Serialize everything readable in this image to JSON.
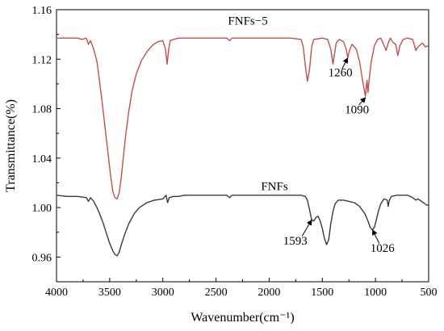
{
  "chart_data": {
    "type": "line",
    "xlabel": "Wavenumber(cm⁻¹)",
    "ylabel": "Transmittance(%)",
    "xlim": [
      4000,
      500
    ],
    "ylim": [
      0.94,
      1.16
    ],
    "x_reversed": true,
    "x_ticks": [
      4000,
      3500,
      3000,
      2500,
      2000,
      1500,
      1000,
      500
    ],
    "y_ticks": [
      0.96,
      1.0,
      1.04,
      1.08,
      1.12,
      1.16
    ],
    "y_tick_labels": [
      "0.96",
      "1.00",
      "1.04",
      "1.08",
      "1.12",
      "1.16"
    ],
    "grid": false,
    "series": [
      {
        "name": "FNFs−5",
        "color": "#c0504d",
        "points": [
          [
            4000,
            1.137
          ],
          [
            3900,
            1.137
          ],
          [
            3800,
            1.137
          ],
          [
            3760,
            1.136
          ],
          [
            3720,
            1.137
          ],
          [
            3700,
            1.132
          ],
          [
            3680,
            1.135
          ],
          [
            3650,
            1.128
          ],
          [
            3620,
            1.118
          ],
          [
            3600,
            1.105
          ],
          [
            3570,
            1.085
          ],
          [
            3540,
            1.062
          ],
          [
            3510,
            1.04
          ],
          [
            3490,
            1.025
          ],
          [
            3470,
            1.013
          ],
          [
            3450,
            1.008
          ],
          [
            3430,
            1.007
          ],
          [
            3410,
            1.012
          ],
          [
            3390,
            1.025
          ],
          [
            3370,
            1.042
          ],
          [
            3350,
            1.058
          ],
          [
            3320,
            1.078
          ],
          [
            3290,
            1.094
          ],
          [
            3250,
            1.108
          ],
          [
            3200,
            1.119
          ],
          [
            3150,
            1.126
          ],
          [
            3100,
            1.131
          ],
          [
            3050,
            1.134
          ],
          [
            3000,
            1.135
          ],
          [
            2975,
            1.128
          ],
          [
            2960,
            1.116
          ],
          [
            2945,
            1.128
          ],
          [
            2930,
            1.135
          ],
          [
            2900,
            1.136
          ],
          [
            2850,
            1.137
          ],
          [
            2800,
            1.137
          ],
          [
            2600,
            1.137
          ],
          [
            2400,
            1.137
          ],
          [
            2370,
            1.135
          ],
          [
            2350,
            1.137
          ],
          [
            2200,
            1.137
          ],
          [
            2000,
            1.137
          ],
          [
            1900,
            1.137
          ],
          [
            1800,
            1.137
          ],
          [
            1700,
            1.136
          ],
          [
            1680,
            1.13
          ],
          [
            1660,
            1.115
          ],
          [
            1640,
            1.102
          ],
          [
            1620,
            1.112
          ],
          [
            1600,
            1.13
          ],
          [
            1580,
            1.136
          ],
          [
            1500,
            1.137
          ],
          [
            1450,
            1.136
          ],
          [
            1420,
            1.128
          ],
          [
            1400,
            1.116
          ],
          [
            1385,
            1.124
          ],
          [
            1370,
            1.133
          ],
          [
            1340,
            1.136
          ],
          [
            1300,
            1.134
          ],
          [
            1275,
            1.128
          ],
          [
            1260,
            1.121
          ],
          [
            1245,
            1.127
          ],
          [
            1220,
            1.132
          ],
          [
            1180,
            1.128
          ],
          [
            1150,
            1.118
          ],
          [
            1120,
            1.102
          ],
          [
            1095,
            1.09
          ],
          [
            1080,
            1.103
          ],
          [
            1070,
            1.093
          ],
          [
            1060,
            1.103
          ],
          [
            1040,
            1.118
          ],
          [
            1010,
            1.131
          ],
          [
            980,
            1.136
          ],
          [
            950,
            1.137
          ],
          [
            920,
            1.131
          ],
          [
            900,
            1.127
          ],
          [
            880,
            1.133
          ],
          [
            860,
            1.137
          ],
          [
            840,
            1.134
          ],
          [
            810,
            1.132
          ],
          [
            790,
            1.123
          ],
          [
            770,
            1.131
          ],
          [
            740,
            1.136
          ],
          [
            700,
            1.137
          ],
          [
            650,
            1.136
          ],
          [
            620,
            1.127
          ],
          [
            600,
            1.13
          ],
          [
            560,
            1.133
          ],
          [
            530,
            1.13
          ],
          [
            500,
            1.131
          ]
        ]
      },
      {
        "name": "FNFs",
        "color": "#3a3a3a",
        "points": [
          [
            4000,
            1.01
          ],
          [
            3900,
            1.009
          ],
          [
            3800,
            1.009
          ],
          [
            3720,
            1.008
          ],
          [
            3700,
            1.005
          ],
          [
            3680,
            1.008
          ],
          [
            3650,
            1.005
          ],
          [
            3620,
            1.0
          ],
          [
            3590,
            0.994
          ],
          [
            3560,
            0.987
          ],
          [
            3530,
            0.979
          ],
          [
            3500,
            0.971
          ],
          [
            3470,
            0.965
          ],
          [
            3450,
            0.962
          ],
          [
            3430,
            0.961
          ],
          [
            3410,
            0.964
          ],
          [
            3390,
            0.97
          ],
          [
            3360,
            0.978
          ],
          [
            3320,
            0.987
          ],
          [
            3270,
            0.995
          ],
          [
            3220,
            1.0
          ],
          [
            3150,
            1.004
          ],
          [
            3080,
            1.006
          ],
          [
            3000,
            1.007
          ],
          [
            2970,
            1.01
          ],
          [
            2955,
            1.004
          ],
          [
            2940,
            1.008
          ],
          [
            2900,
            1.009
          ],
          [
            2850,
            1.009
          ],
          [
            2800,
            1.01
          ],
          [
            2600,
            1.01
          ],
          [
            2400,
            1.01
          ],
          [
            2370,
            1.008
          ],
          [
            2350,
            1.01
          ],
          [
            2200,
            1.01
          ],
          [
            2000,
            1.01
          ],
          [
            1800,
            1.01
          ],
          [
            1700,
            1.01
          ],
          [
            1660,
            1.009
          ],
          [
            1640,
            1.006
          ],
          [
            1620,
            0.998
          ],
          [
            1600,
            0.99
          ],
          [
            1580,
            0.989
          ],
          [
            1560,
            0.992
          ],
          [
            1540,
            0.993
          ],
          [
            1520,
            0.989
          ],
          [
            1500,
            0.983
          ],
          [
            1480,
            0.975
          ],
          [
            1460,
            0.97
          ],
          [
            1440,
            0.974
          ],
          [
            1420,
            0.987
          ],
          [
            1400,
            0.997
          ],
          [
            1380,
            1.003
          ],
          [
            1350,
            1.006
          ],
          [
            1300,
            1.006
          ],
          [
            1250,
            1.005
          ],
          [
            1200,
            1.004
          ],
          [
            1150,
            1.001
          ],
          [
            1100,
            0.995
          ],
          [
            1070,
            0.989
          ],
          [
            1050,
            0.984
          ],
          [
            1030,
            0.982
          ],
          [
            1010,
            0.984
          ],
          [
            990,
            0.991
          ],
          [
            970,
            0.998
          ],
          [
            950,
            1.003
          ],
          [
            920,
            1.007
          ],
          [
            890,
            1.006
          ],
          [
            880,
            1.001
          ],
          [
            870,
            1.006
          ],
          [
            850,
            1.009
          ],
          [
            800,
            1.01
          ],
          [
            750,
            1.01
          ],
          [
            700,
            1.01
          ],
          [
            650,
            1.008
          ],
          [
            620,
            1.006
          ],
          [
            600,
            1.007
          ],
          [
            550,
            1.004
          ],
          [
            520,
            1.002
          ],
          [
            500,
            1.002
          ]
        ]
      }
    ],
    "series_labels": [
      {
        "text": "FNFs−5",
        "x": 2200,
        "y": 1.148
      },
      {
        "text": "FNFs",
        "x": 1950,
        "y": 1.014
      }
    ],
    "annotations": [
      {
        "text": "1260",
        "label_x": 1330,
        "label_y": 1.106,
        "arrow_to_x": 1262,
        "arrow_to_y": 1.121,
        "arrow_from_x": 1315,
        "arrow_from_y": 1.112
      },
      {
        "text": "1090",
        "label_x": 1175,
        "label_y": 1.076,
        "arrow_to_x": 1094,
        "arrow_to_y": 1.089,
        "arrow_from_x": 1155,
        "arrow_from_y": 1.083
      },
      {
        "text": "1593",
        "label_x": 1755,
        "label_y": 0.97,
        "arrow_to_x": 1600,
        "arrow_to_y": 0.99,
        "arrow_from_x": 1690,
        "arrow_from_y": 0.977
      },
      {
        "text": "1026",
        "label_x": 935,
        "label_y": 0.964,
        "arrow_to_x": 1028,
        "arrow_to_y": 0.982,
        "arrow_from_x": 965,
        "arrow_from_y": 0.971
      }
    ]
  }
}
